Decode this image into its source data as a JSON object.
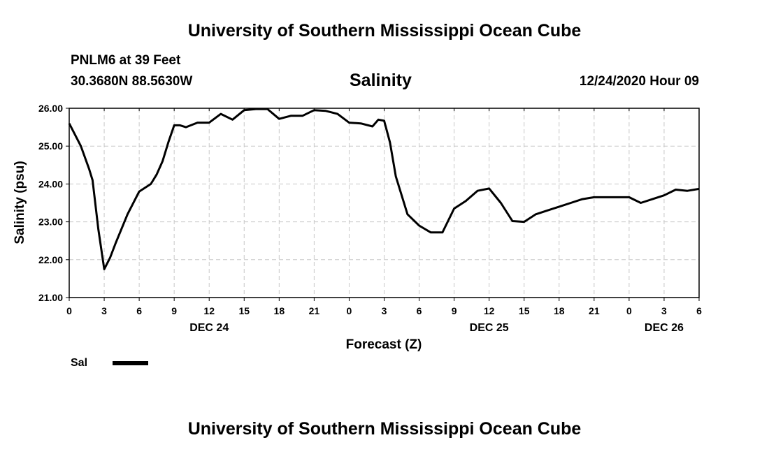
{
  "header": {
    "title": "University of Southern Mississippi Ocean Cube",
    "station": "PNLM6 at 39 Feet",
    "coords": "30.3680N 88.5630W",
    "variable": "Salinity",
    "run_time": "12/24/2020 Hour 09"
  },
  "legend": {
    "label": "Sal",
    "color": "#000000"
  },
  "footer": {
    "title": "University of Southern Mississippi Ocean Cube"
  },
  "chart_data": {
    "type": "line",
    "title": "Salinity",
    "xlabel": "Forecast (Z)",
    "ylabel": "Salinity (psu)",
    "ylim": [
      21,
      26
    ],
    "xlim": [
      0,
      54
    ],
    "y_ticks": [
      "21.00",
      "22.00",
      "23.00",
      "24.00",
      "25.00",
      "26.00"
    ],
    "x_ticks": [
      "0",
      "3",
      "6",
      "9",
      "12",
      "15",
      "18",
      "21",
      "0",
      "3",
      "6",
      "9",
      "12",
      "15",
      "18",
      "21",
      "0",
      "3",
      "6"
    ],
    "date_labels": [
      {
        "text": "DEC 24",
        "hour": 12
      },
      {
        "text": "DEC 25",
        "hour": 36
      },
      {
        "text": "DEC 26",
        "hour": 51
      }
    ],
    "grid": true,
    "series": [
      {
        "name": "Sal",
        "x": [
          0,
          1,
          1.7,
          2,
          2.5,
          3,
          3.5,
          4,
          5,
          6,
          7,
          7.5,
          8,
          8.5,
          9,
          9.5,
          10,
          11,
          12,
          13,
          14,
          15,
          16,
          17,
          18,
          19,
          20,
          21,
          22,
          23,
          24,
          25,
          26,
          26.5,
          27,
          27.5,
          28,
          29,
          30,
          31,
          32,
          33,
          34,
          35,
          36,
          37,
          38,
          39,
          40,
          41,
          42,
          43,
          44,
          45,
          46,
          47,
          48,
          49,
          50,
          51,
          52,
          53,
          54
        ],
        "y": [
          25.6,
          25.0,
          24.4,
          24.1,
          22.8,
          21.75,
          22.05,
          22.45,
          23.2,
          23.8,
          24.0,
          24.25,
          24.6,
          25.1,
          25.55,
          25.55,
          25.5,
          25.62,
          25.62,
          25.85,
          25.7,
          25.95,
          25.98,
          25.98,
          25.72,
          25.8,
          25.8,
          25.95,
          25.93,
          25.85,
          25.62,
          25.6,
          25.52,
          25.7,
          25.67,
          25.1,
          24.2,
          23.2,
          22.9,
          22.72,
          22.72,
          23.35,
          23.55,
          23.82,
          23.88,
          23.5,
          23.02,
          23.0,
          23.2,
          23.3,
          23.4,
          23.5,
          23.6,
          23.65,
          23.65,
          23.65,
          23.65,
          23.5,
          23.6,
          23.7,
          23.85,
          23.82,
          23.87
        ]
      }
    ]
  }
}
